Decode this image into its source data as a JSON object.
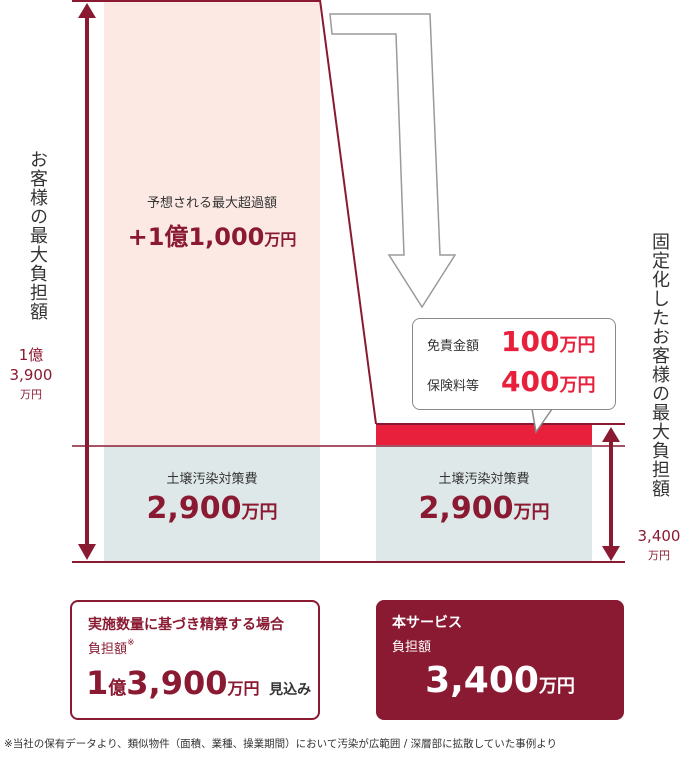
{
  "left_axis": {
    "title": "お客様の最大負担額",
    "amount_line1": "1億",
    "amount_line2": "3,900",
    "amount_unit": "万円"
  },
  "right_axis": {
    "title": "固定化したお客様の最大負担額",
    "amount": "3,400",
    "amount_unit": "万円"
  },
  "left_bar": {
    "overrun_label": "予想される最大超過額",
    "overrun_amount": "+1億1,000",
    "overrun_unit": "万円",
    "cost_label": "土壌汚染対策費",
    "cost_amount": "2,900",
    "cost_unit": "万円"
  },
  "right_bar": {
    "cost_label": "土壌汚染対策費",
    "cost_amount": "2,900",
    "cost_unit": "万円"
  },
  "callout": {
    "deductible_label": "免責金額",
    "deductible_amount": "100",
    "deductible_unit": "万円",
    "premium_label": "保険料等",
    "premium_amount": "400",
    "premium_unit": "万円"
  },
  "box_actual": {
    "title": "実施数量に基づき精算する場合",
    "subtitle": "負担額",
    "subtitle_mark": "※",
    "amount_prefix": "1",
    "amount_oku": "億",
    "amount_main": "3,900",
    "amount_unit": "万円",
    "amount_suffix": "見込み"
  },
  "box_service": {
    "title": "本サービス",
    "subtitle": "負担額",
    "amount": "3,400",
    "amount_unit": "万円"
  },
  "footnote": "※当社の保有データより、類似物件（面積、業種、操業期間）において汚染が広範囲 / 深層部に拡散していた事例より",
  "colors": {
    "brand": "#8a1a32",
    "accent_red": "#e8203c",
    "overrun_fill": "#fce9e4",
    "cost_fill": "#dfe8e8"
  }
}
